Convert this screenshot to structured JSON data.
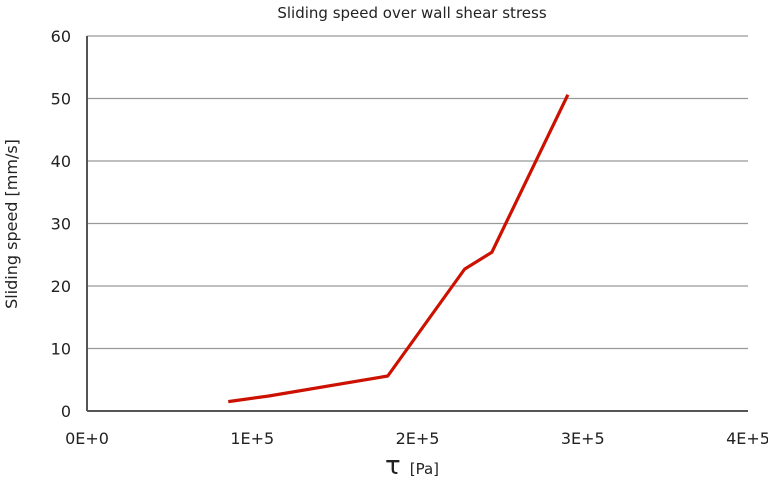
{
  "chart_data": {
    "type": "line",
    "title": "Sliding speed over wall shear stress",
    "xlabel_symbol": "τ",
    "xlabel_unit": "[Pa]",
    "ylabel": "Sliding speed [mm/s]",
    "xlim": [
      0,
      400000
    ],
    "ylim": [
      0,
      60
    ],
    "xticks": [
      0,
      100000,
      200000,
      300000,
      400000
    ],
    "xtick_labels": [
      "0E+0",
      "1E+5",
      "2E+5",
      "3E+5",
      "4E+5"
    ],
    "yticks": [
      0,
      10,
      20,
      30,
      40,
      50,
      60
    ],
    "ytick_labels": [
      "0",
      "10",
      "20",
      "30",
      "40",
      "50",
      "60"
    ],
    "grid": "horizontal",
    "series": [
      {
        "color": "#cc1100",
        "x": [
          85500,
          110000,
          182000,
          228500,
          245000,
          291000
        ],
        "y": [
          1.5,
          2.4,
          5.6,
          22.7,
          25.4,
          50.6
        ]
      }
    ]
  }
}
